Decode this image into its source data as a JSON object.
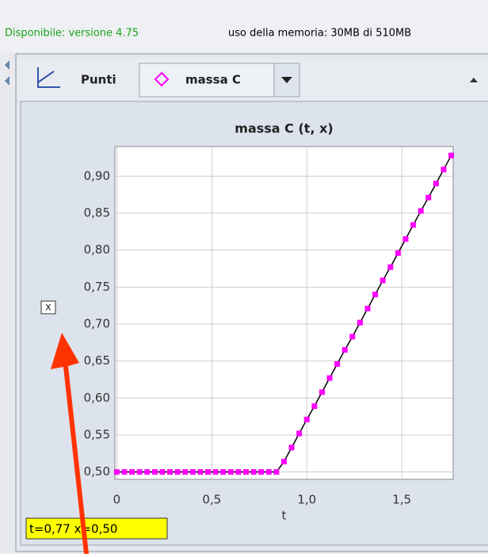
{
  "status": {
    "version": "Disponibile: versione 4.75",
    "memory": "uso della memoria: 30MB di 510MB"
  },
  "toolbar": {
    "mode": "Punti",
    "track": "massa C"
  },
  "readout": "t=0,77  x=0,50",
  "chart_data": {
    "type": "scatter",
    "title": "massa C (t, x)",
    "x_label": "t",
    "y_label": "x",
    "x": [
      0,
      0.04,
      0.08,
      0.12,
      0.16,
      0.2,
      0.24,
      0.28,
      0.32,
      0.36,
      0.4,
      0.44,
      0.48,
      0.52,
      0.56,
      0.6,
      0.64,
      0.68,
      0.72,
      0.76,
      0.8,
      0.84,
      0.88,
      0.92,
      0.96,
      1.0,
      1.04,
      1.08,
      1.12,
      1.16,
      1.2,
      1.24,
      1.28,
      1.32,
      1.36,
      1.4,
      1.44,
      1.48,
      1.52,
      1.56,
      1.6,
      1.64,
      1.68,
      1.72,
      1.76
    ],
    "series": [
      {
        "name": "massa C",
        "color": "#ff00ff",
        "values": [
          0.5,
          0.5,
          0.5,
          0.5,
          0.5,
          0.5,
          0.5,
          0.5,
          0.5,
          0.5,
          0.5,
          0.5,
          0.5,
          0.5,
          0.5,
          0.5,
          0.5,
          0.5,
          0.5,
          0.5,
          0.5,
          0.5,
          0.514,
          0.533,
          0.552,
          0.571,
          0.589,
          0.608,
          0.627,
          0.646,
          0.665,
          0.683,
          0.702,
          0.721,
          0.74,
          0.759,
          0.777,
          0.796,
          0.815,
          0.834,
          0.853,
          0.871,
          0.89,
          0.909,
          0.928
        ]
      }
    ],
    "xlim": [
      -0.01,
      1.77
    ],
    "ylim": [
      0.49,
      0.94
    ],
    "xticks": [
      0,
      {
        "value": 0.5,
        "label": "0,5"
      },
      {
        "value": 1.0,
        "label": "1,0"
      },
      {
        "value": 1.5,
        "label": "1,5"
      }
    ],
    "yticks": [
      {
        "value": 0.5,
        "label": "0,50"
      },
      {
        "value": 0.55,
        "label": "0,55"
      },
      {
        "value": 0.6,
        "label": "0,60"
      },
      {
        "value": 0.65,
        "label": "0,65"
      },
      {
        "value": 0.7,
        "label": "0,70"
      },
      {
        "value": 0.75,
        "label": "0,75"
      },
      {
        "value": 0.8,
        "label": "0,80"
      },
      {
        "value": 0.85,
        "label": "0,85"
      },
      {
        "value": 0.9,
        "label": "0,90"
      }
    ],
    "grid": true,
    "line_color": "#000000"
  }
}
